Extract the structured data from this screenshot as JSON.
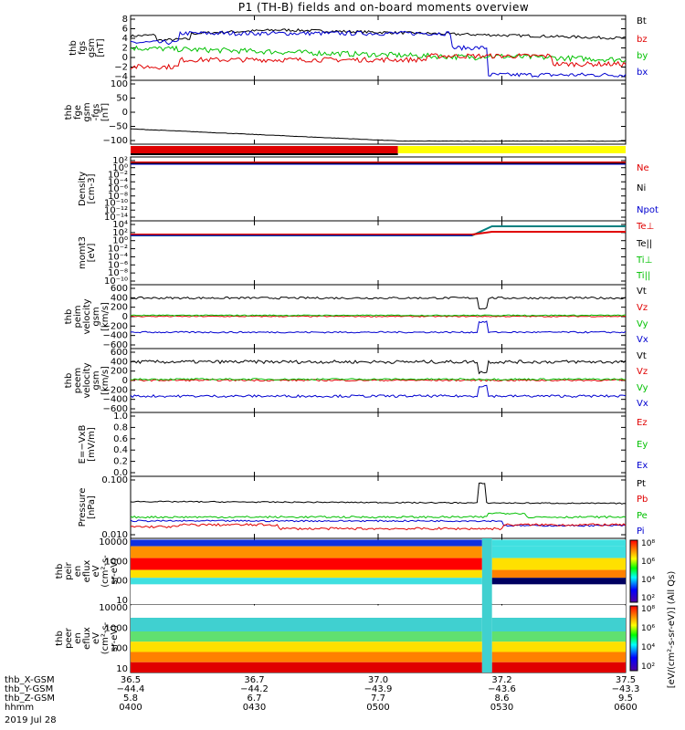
{
  "figure": {
    "title": "P1 (TH-B) fields and on-board moments overview",
    "date_label": "2019 Jul 28",
    "colors": {
      "black": "#000000",
      "red": "#e00000",
      "green": "#00c000",
      "blue": "#0000d0",
      "yellow": "#ffff00",
      "teal": "#008080"
    }
  },
  "chart_data": [
    {
      "id": "fgs",
      "type": "line",
      "ylabel_lines": [
        "thb",
        "fgs",
        "gsm",
        "[nT]"
      ],
      "yticks": [
        "8",
        "6",
        "4",
        "2",
        "0",
        "−2",
        "−4"
      ],
      "ylim": [
        -4,
        8
      ],
      "legend": [
        {
          "label": "Bt",
          "color": "#000000"
        },
        {
          "label": "bz",
          "color": "#e00000"
        },
        {
          "label": "by",
          "color": "#00c000"
        },
        {
          "label": "bx",
          "color": "#0000d0"
        }
      ]
    },
    {
      "id": "fge",
      "type": "line",
      "ylabel_lines": [
        "thb",
        "fge",
        "gsm",
        "-fgs",
        "[nT]"
      ],
      "yticks": [
        "100",
        "50",
        "0",
        "−50",
        "−100"
      ],
      "ylim": [
        -130,
        100
      ],
      "legend": []
    },
    {
      "id": "flags",
      "type": "bar",
      "segments": [
        {
          "start": 0.0,
          "end": 0.54,
          "color": "#e00000"
        },
        {
          "start": 0.54,
          "end": 1.0,
          "color": "#ffff00"
        }
      ]
    },
    {
      "id": "density",
      "type": "line",
      "ylabel_lines": [
        "Density",
        "[cm-3]"
      ],
      "yticks": [
        "10²",
        "10⁰",
        "10⁻²",
        "10⁻⁴",
        "10⁻⁶",
        "10⁻⁸",
        "10⁻¹⁰",
        "10⁻¹²",
        "10⁻¹⁴"
      ],
      "legend": [
        {
          "label": "Ne",
          "color": "#e00000"
        },
        {
          "label": "Ni",
          "color": "#000000"
        },
        {
          "label": "Npot",
          "color": "#0000d0"
        }
      ]
    },
    {
      "id": "temperature",
      "type": "line",
      "ylabel_lines": [
        "momt3",
        "[eV]"
      ],
      "yticks": [
        "10⁴",
        "10²",
        "10⁰",
        "10⁻²",
        "10⁻⁴",
        "10⁻⁶",
        "10⁻⁸",
        "10⁻¹⁰"
      ],
      "legend": [
        {
          "label": "Te⊥",
          "color": "#e00000"
        },
        {
          "label": "Te||",
          "color": "#000000"
        },
        {
          "label": "Ti⊥",
          "color": "#00c000"
        },
        {
          "label": "Ti||",
          "color": "#00c000"
        }
      ]
    },
    {
      "id": "peim",
      "type": "line",
      "ylabel_lines": [
        "thb",
        "peim",
        "velocity",
        "gsm",
        "[km/s]"
      ],
      "yticks": [
        "600",
        "400",
        "200",
        "0",
        "−200",
        "−400",
        "−600"
      ],
      "ylim": [
        -650,
        600
      ],
      "legend": [
        {
          "label": "Vt",
          "color": "#000000"
        },
        {
          "label": "Vz",
          "color": "#e00000"
        },
        {
          "label": "Vy",
          "color": "#00c000"
        },
        {
          "label": "Vx",
          "color": "#0000d0"
        }
      ]
    },
    {
      "id": "peem",
      "type": "line",
      "ylabel_lines": [
        "thb",
        "peem",
        "velocity",
        "gsm",
        "[km/s]"
      ],
      "yticks": [
        "600",
        "400",
        "200",
        "0",
        "−200",
        "−400",
        "−600"
      ],
      "ylim": [
        -650,
        600
      ],
      "legend": [
        {
          "label": "Vt",
          "color": "#000000"
        },
        {
          "label": "Vz",
          "color": "#e00000"
        },
        {
          "label": "Vy",
          "color": "#00c000"
        },
        {
          "label": "Vx",
          "color": "#0000d0"
        }
      ]
    },
    {
      "id": "efield",
      "type": "line",
      "ylabel_lines": [
        "E=−VxB",
        "[mV/m]"
      ],
      "yticks": [
        "1.0",
        "0.8",
        "0.6",
        "0.4",
        "0.2",
        "0.0"
      ],
      "ylim": [
        0,
        1
      ],
      "legend": [
        {
          "label": "Ez",
          "color": "#e00000"
        },
        {
          "label": "Ey",
          "color": "#00c000"
        },
        {
          "label": "Ex",
          "color": "#0000d0"
        }
      ]
    },
    {
      "id": "pressure",
      "type": "line",
      "ylabel_lines": [
        "Pressure",
        "[nPa]"
      ],
      "yticks": [
        "0.100",
        "0.010"
      ],
      "legend": [
        {
          "label": "Pt",
          "color": "#000000"
        },
        {
          "label": "Pb",
          "color": "#e00000"
        },
        {
          "label": "Pe",
          "color": "#00c000"
        },
        {
          "label": "Pi",
          "color": "#0000d0"
        }
      ]
    },
    {
      "id": "peir",
      "type": "heatmap",
      "ylabel_lines": [
        "thb",
        "peir",
        "en",
        "eflux",
        "eV",
        "(cm²-s-",
        "sr-eV)"
      ],
      "yticks": [
        "10000",
        "1000",
        "100",
        "10"
      ],
      "colorbar_ticks": [
        "10⁸",
        "10⁶",
        "10⁴",
        "10²"
      ]
    },
    {
      "id": "peer",
      "type": "heatmap",
      "ylabel_lines": [
        "thb",
        "peer",
        "en",
        "eflux",
        "eV",
        "(cm²-s-",
        "sr-eV)"
      ],
      "yticks": [
        "10000",
        "1000",
        "100",
        "10"
      ],
      "colorbar_ticks": [
        "10⁸",
        "10⁶",
        "10⁴",
        "10²"
      ]
    }
  ],
  "colorbar_label": "[eV/(cm²-s-sr-eV)] (All Qs)",
  "x_axis": {
    "rows": [
      {
        "label": "thb_X-GSM",
        "values": [
          "36.5",
          "36.7",
          "37.0",
          "37.2",
          "37.5"
        ]
      },
      {
        "label": "thb_Y-GSM",
        "values": [
          "−44.4",
          "−44.2",
          "−43.9",
          "−43.6",
          "−43.3"
        ]
      },
      {
        "label": "thb_Z-GSM",
        "values": [
          "5.8",
          "6.7",
          "7.7",
          "8.6",
          "9.5"
        ]
      },
      {
        "label": "hhmm",
        "values": [
          "0400",
          "0430",
          "0500",
          "0530",
          "0600"
        ]
      }
    ]
  }
}
